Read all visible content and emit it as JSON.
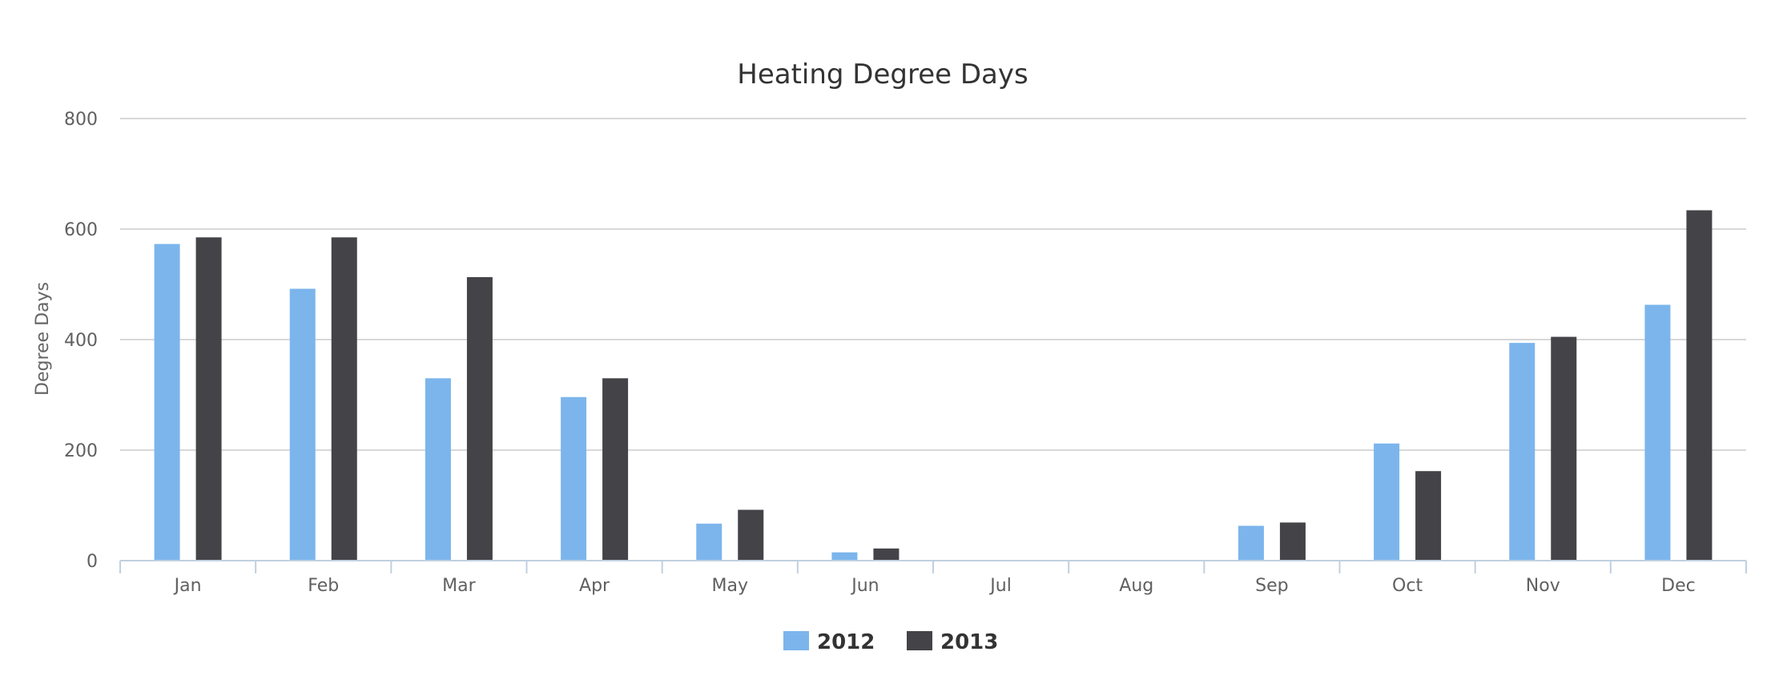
{
  "chart_data": {
    "type": "bar",
    "title": "Heating Degree Days",
    "xlabel": "",
    "ylabel": "Degree Days",
    "ylim": [
      0,
      800
    ],
    "yticks": [
      0,
      200,
      400,
      600,
      800
    ],
    "grid": true,
    "legend_position": "bottom-center",
    "categories": [
      "Jan",
      "Feb",
      "Mar",
      "Apr",
      "May",
      "Jun",
      "Jul",
      "Aug",
      "Sep",
      "Oct",
      "Nov",
      "Dec"
    ],
    "series": [
      {
        "name": "2012",
        "color": "#7cb5ec",
        "values": [
          573,
          492,
          330,
          296,
          67,
          15,
          0,
          0,
          63,
          212,
          394,
          463
        ]
      },
      {
        "name": "2013",
        "color": "#434348",
        "values": [
          585,
          585,
          513,
          330,
          92,
          22,
          0,
          0,
          69,
          162,
          405,
          634
        ]
      }
    ]
  }
}
